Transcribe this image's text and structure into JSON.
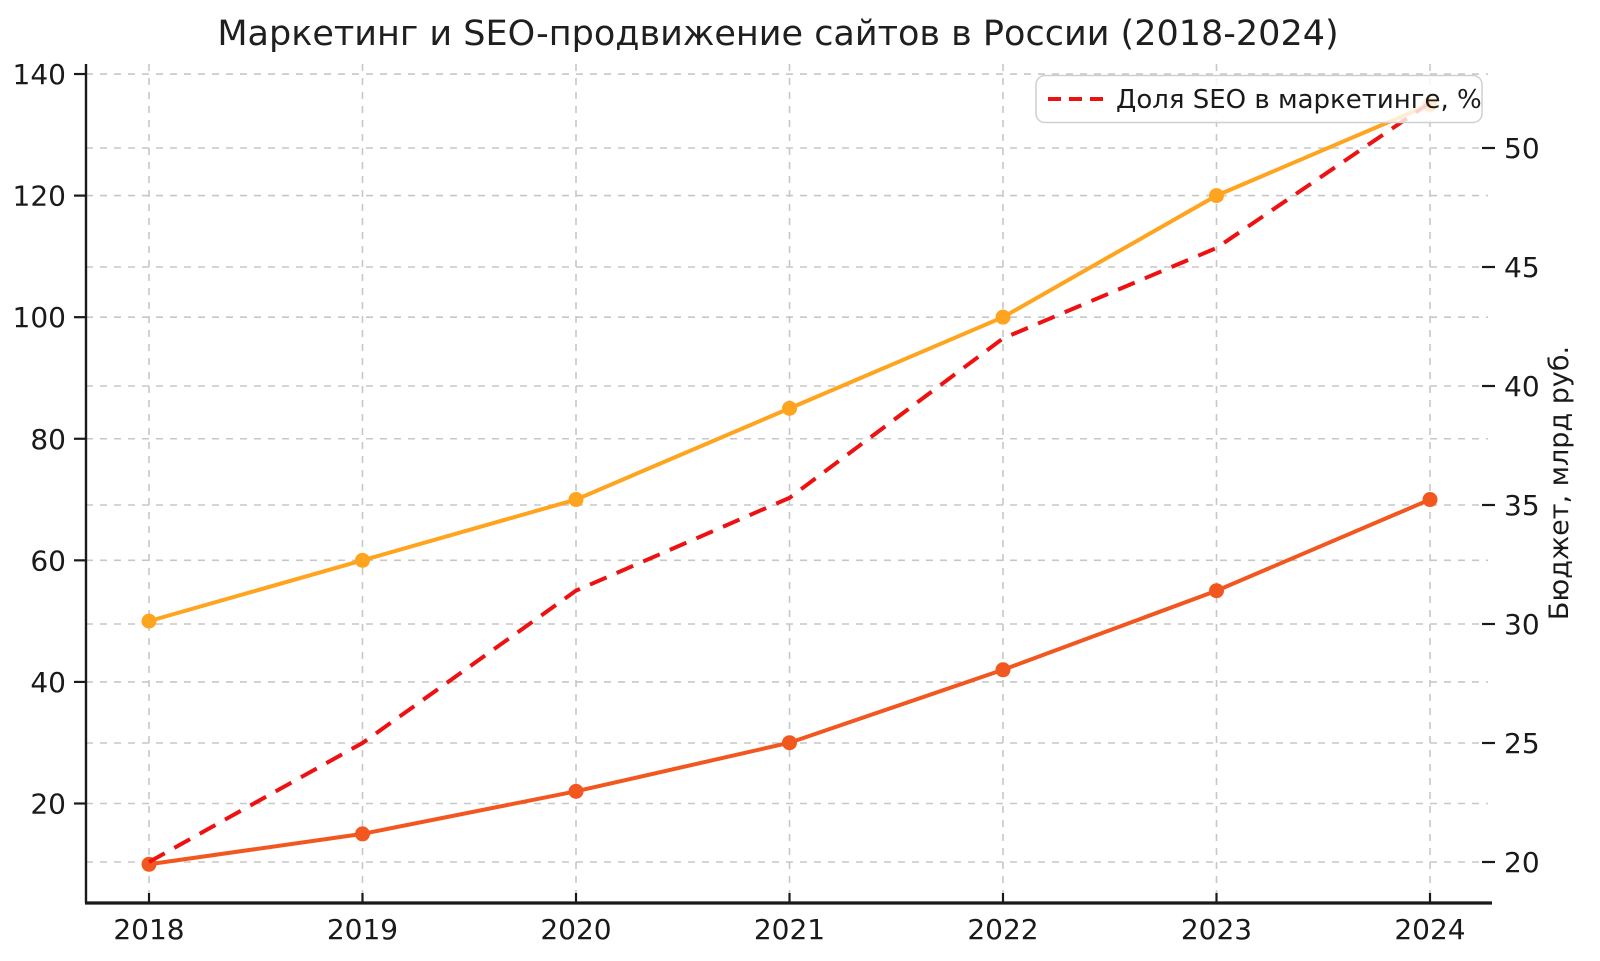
{
  "title": "Маркетинг и SEO-продвижение сайтов в России (2018-2024)",
  "chart_data": {
    "type": "line",
    "x": [
      2018,
      2019,
      2020,
      2021,
      2022,
      2023,
      2024
    ],
    "x_tick_labels": [
      "2018",
      "2019",
      "2020",
      "2021",
      "2022",
      "2023",
      "2024"
    ],
    "series": [
      {
        "id": "marketing-budget-line",
        "legend_label": "",
        "axis": "left",
        "color": "#FFA41E",
        "line_style": "solid",
        "markers": true,
        "values": [
          50,
          60,
          70,
          85,
          100,
          120,
          135
        ]
      },
      {
        "id": "seo-budget-line",
        "legend_label": "",
        "axis": "left",
        "color": "#F1571F",
        "line_style": "solid",
        "markers": true,
        "values": [
          10,
          15,
          22,
          30,
          42,
          55,
          70
        ]
      },
      {
        "id": "seo-share-line",
        "legend_label": "Доля SEO в маркетинге, %",
        "axis": "right",
        "color": "#EE1111",
        "line_style": "dashed",
        "markers": false,
        "values": [
          20.0,
          25.0,
          31.4,
          35.3,
          42.0,
          45.8,
          51.9
        ]
      }
    ],
    "left_axis": {
      "ticks": [
        20,
        40,
        60,
        80,
        100,
        120,
        140
      ],
      "range": [
        10,
        141
      ]
    },
    "right_axis": {
      "ticks": [
        20,
        25,
        30,
        35,
        40,
        45,
        50
      ],
      "range": [
        18.2,
        53.7
      ],
      "label": "Бюджет, млрд руб."
    },
    "legend": {
      "position": "upper-right"
    },
    "grid": true,
    "grid_color": "#c7c7c7",
    "axis_color": "#1a1a1a"
  }
}
